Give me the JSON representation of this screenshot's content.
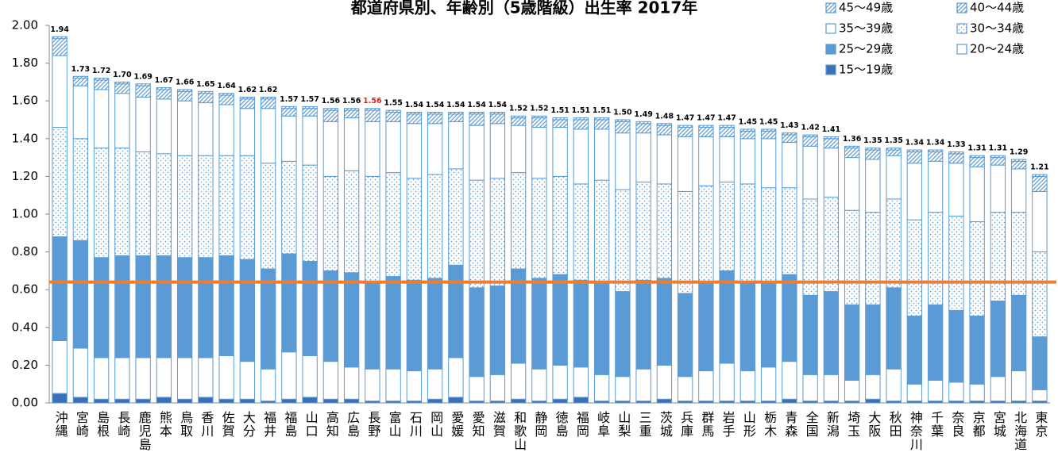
{
  "chart_data": {
    "type": "stacked_bar",
    "title": "都道府県別、年齢別（5歳階級）出生率 2017年",
    "categories": [
      "沖縄",
      "宮崎",
      "島根",
      "長崎",
      "鹿児島",
      "熊本",
      "鳥取",
      "香川",
      "佐賀",
      "大分",
      "福井",
      "福島",
      "山口",
      "高知",
      "広島",
      "長野",
      "富山",
      "石川",
      "岡山",
      "愛媛",
      "愛知",
      "滋賀",
      "和歌山",
      "静岡",
      "徳島",
      "福岡",
      "岐阜",
      "山梨",
      "三重",
      "茨城",
      "兵庫",
      "群馬",
      "岩手",
      "山形",
      "栃木",
      "青森",
      "全国",
      "新潟",
      "埼玉",
      "大阪",
      "秋田",
      "神奈川",
      "千葉",
      "奈良",
      "京都",
      "宮城",
      "北海道",
      "東京"
    ],
    "totals": [
      1.94,
      1.73,
      1.72,
      1.7,
      1.69,
      1.67,
      1.66,
      1.65,
      1.64,
      1.62,
      1.62,
      1.57,
      1.57,
      1.56,
      1.56,
      1.56,
      1.55,
      1.54,
      1.54,
      1.54,
      1.54,
      1.54,
      1.52,
      1.52,
      1.51,
      1.51,
      1.51,
      1.5,
      1.49,
      1.48,
      1.47,
      1.47,
      1.47,
      1.45,
      1.45,
      1.43,
      1.42,
      1.41,
      1.36,
      1.35,
      1.35,
      1.34,
      1.34,
      1.33,
      1.31,
      1.31,
      1.29,
      1.21
    ],
    "total_labels": [
      "1.94",
      "1.73",
      "1.72",
      "1.70",
      "1.69",
      "1.67",
      "1.66",
      "1.65",
      "1.64",
      "1.62",
      "1.62",
      "1.57",
      "1.57",
      "1.56",
      "1.56",
      "1.56",
      "1.55",
      "1.54",
      "1.54",
      "1.54",
      "1.54",
      "1.54",
      "1.52",
      "1.52",
      "1.51",
      "1.51",
      "1.51",
      "1.50",
      "1.49",
      "1.48",
      "1.47",
      "1.47",
      "1.47",
      "1.45",
      "1.45",
      "1.43",
      "1.42",
      "1.41",
      "1.36",
      "1.35",
      "1.35",
      "1.34",
      "1.34",
      "1.33",
      "1.31",
      "1.31",
      "1.29",
      "1.21"
    ],
    "highlight": "長野",
    "highlight_color": "#e02020",
    "series": [
      {
        "name": "15〜19歳",
        "color": "#3b70b8",
        "pattern": "solid",
        "values": [
          0.05,
          0.03,
          0.02,
          0.02,
          0.02,
          0.03,
          0.02,
          0.03,
          0.02,
          0.02,
          0.01,
          0.02,
          0.03,
          0.02,
          0.02,
          0.01,
          0.01,
          0.01,
          0.02,
          0.03,
          0.01,
          0.01,
          0.02,
          0.01,
          0.02,
          0.03,
          0.01,
          0.01,
          0.01,
          0.02,
          0.01,
          0.01,
          0.01,
          0.01,
          0.01,
          0.02,
          0.01,
          0.01,
          0.01,
          0.02,
          0.01,
          0.01,
          0.01,
          0.01,
          0.01,
          0.01,
          0.01,
          0.01
        ]
      },
      {
        "name": "20〜24歳",
        "color": "#ffffff",
        "pattern": "solid",
        "values": [
          0.28,
          0.26,
          0.22,
          0.22,
          0.22,
          0.21,
          0.22,
          0.21,
          0.23,
          0.2,
          0.17,
          0.25,
          0.22,
          0.2,
          0.17,
          0.17,
          0.17,
          0.16,
          0.16,
          0.21,
          0.13,
          0.14,
          0.19,
          0.17,
          0.18,
          0.16,
          0.14,
          0.13,
          0.17,
          0.18,
          0.13,
          0.16,
          0.2,
          0.16,
          0.18,
          0.2,
          0.14,
          0.14,
          0.11,
          0.13,
          0.17,
          0.09,
          0.11,
          0.1,
          0.09,
          0.13,
          0.16,
          0.06
        ]
      },
      {
        "name": "25〜29歳",
        "color": "#5b9bd5",
        "pattern": "solid",
        "values": [
          0.55,
          0.57,
          0.53,
          0.54,
          0.54,
          0.54,
          0.53,
          0.53,
          0.53,
          0.54,
          0.53,
          0.52,
          0.5,
          0.48,
          0.5,
          0.46,
          0.49,
          0.48,
          0.48,
          0.49,
          0.47,
          0.47,
          0.5,
          0.48,
          0.48,
          0.46,
          0.48,
          0.45,
          0.47,
          0.46,
          0.44,
          0.47,
          0.49,
          0.47,
          0.45,
          0.46,
          0.42,
          0.44,
          0.4,
          0.37,
          0.43,
          0.36,
          0.4,
          0.38,
          0.36,
          0.4,
          0.4,
          0.28
        ]
      },
      {
        "name": "30〜34歳",
        "color": "#5b9bd5",
        "pattern": "dots",
        "values": [
          0.58,
          0.54,
          0.58,
          0.57,
          0.55,
          0.54,
          0.54,
          0.54,
          0.53,
          0.55,
          0.56,
          0.49,
          0.51,
          0.5,
          0.54,
          0.56,
          0.55,
          0.54,
          0.55,
          0.51,
          0.57,
          0.57,
          0.51,
          0.53,
          0.52,
          0.51,
          0.55,
          0.54,
          0.52,
          0.5,
          0.54,
          0.51,
          0.47,
          0.52,
          0.5,
          0.46,
          0.51,
          0.5,
          0.5,
          0.49,
          0.47,
          0.51,
          0.49,
          0.5,
          0.5,
          0.47,
          0.44,
          0.45
        ]
      },
      {
        "name": "35〜39歳",
        "color": "#ffffff",
        "pattern": "solid",
        "values": [
          0.38,
          0.28,
          0.31,
          0.29,
          0.29,
          0.29,
          0.29,
          0.28,
          0.27,
          0.25,
          0.29,
          0.24,
          0.26,
          0.29,
          0.28,
          0.29,
          0.27,
          0.29,
          0.27,
          0.25,
          0.29,
          0.29,
          0.25,
          0.27,
          0.26,
          0.29,
          0.27,
          0.3,
          0.26,
          0.26,
          0.29,
          0.26,
          0.24,
          0.24,
          0.26,
          0.24,
          0.28,
          0.26,
          0.28,
          0.28,
          0.23,
          0.3,
          0.27,
          0.28,
          0.29,
          0.25,
          0.23,
          0.32
        ]
      },
      {
        "name": "40〜44歳",
        "color": "#5b9bd5",
        "pattern": "hatch",
        "values": [
          0.09,
          0.04,
          0.05,
          0.05,
          0.06,
          0.05,
          0.05,
          0.05,
          0.05,
          0.05,
          0.05,
          0.04,
          0.04,
          0.06,
          0.04,
          0.06,
          0.05,
          0.05,
          0.05,
          0.04,
          0.06,
          0.05,
          0.04,
          0.05,
          0.04,
          0.05,
          0.05,
          0.06,
          0.05,
          0.05,
          0.05,
          0.05,
          0.05,
          0.04,
          0.04,
          0.04,
          0.05,
          0.05,
          0.05,
          0.05,
          0.03,
          0.06,
          0.05,
          0.05,
          0.05,
          0.04,
          0.04,
          0.08
        ]
      },
      {
        "name": "45〜49歳",
        "color": "#5b9bd5",
        "pattern": "hatch",
        "values": [
          0.01,
          0.01,
          0.01,
          0.01,
          0.01,
          0.01,
          0.01,
          0.01,
          0.01,
          0.01,
          0.01,
          0.01,
          0.01,
          0.01,
          0.01,
          0.01,
          0.01,
          0.01,
          0.01,
          0.01,
          0.01,
          0.01,
          0.01,
          0.01,
          0.01,
          0.01,
          0.01,
          0.01,
          0.01,
          0.01,
          0.01,
          0.01,
          0.01,
          0.01,
          0.01,
          0.01,
          0.01,
          0.01,
          0.01,
          0.01,
          0.01,
          0.01,
          0.01,
          0.01,
          0.01,
          0.01,
          0.01,
          0.01
        ]
      }
    ],
    "ylim": [
      0,
      2
    ],
    "yticks": [
      {
        "value": 0,
        "label": "0.00"
      },
      {
        "value": 0.2,
        "label": "0.20"
      },
      {
        "value": 0.4,
        "label": "0.40"
      },
      {
        "value": 0.6,
        "label": "0.60"
      },
      {
        "value": 0.8,
        "label": "0.80"
      },
      {
        "value": 1,
        "label": "1.00"
      },
      {
        "value": 1.2,
        "label": "1.20"
      },
      {
        "value": 1.4,
        "label": "1.40"
      },
      {
        "value": 1.6,
        "label": "1.60"
      },
      {
        "value": 1.8,
        "label": "1.80"
      },
      {
        "value": 2,
        "label": "2.00"
      }
    ],
    "reference_line": {
      "value": 0.64,
      "color": "#ed7d31"
    },
    "legend": "top-right"
  }
}
